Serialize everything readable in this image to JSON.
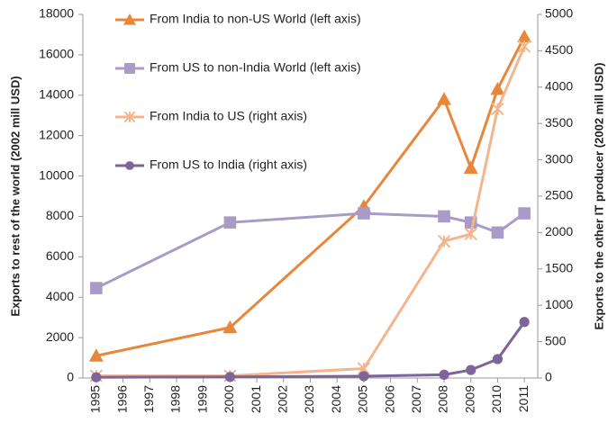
{
  "chart_data": {
    "type": "line",
    "y_label": "Exports to rest of the world (2002 mill USD)",
    "y2_label": "Exports to the other IT producer (2002 mill USD)",
    "x": [
      1995,
      2000,
      2005,
      2008,
      2009,
      2010,
      2011
    ],
    "xlim": [
      1994.5,
      2011.5
    ],
    "xticks": [
      1995,
      1996,
      1997,
      1998,
      1999,
      2000,
      2001,
      2002,
      2003,
      2004,
      2005,
      2006,
      2007,
      2008,
      2009,
      2010,
      2011
    ],
    "ylim": [
      0,
      18000
    ],
    "yticks": [
      0,
      2000,
      4000,
      6000,
      8000,
      10000,
      12000,
      14000,
      16000,
      18000
    ],
    "y2lim": [
      0,
      5000
    ],
    "y2ticks": [
      0,
      500,
      1000,
      1500,
      2000,
      2500,
      3000,
      3500,
      4000,
      4500,
      5000
    ],
    "legend": "top-left",
    "series": [
      {
        "name": "From India to non-US World (left axis)",
        "color": "#e8873a",
        "marker": "triangle",
        "values": [
          1100,
          2500,
          8500,
          13800,
          10400,
          14300,
          16900
        ]
      },
      {
        "name": "From US to non-India World (left axis)",
        "color": "#a99bc8",
        "marker": "square",
        "values": [
          4450,
          7700,
          8150,
          8000,
          7700,
          7200,
          8150
        ]
      },
      {
        "name": "From India to US (right axis)",
        "color": "#f4b48c",
        "marker": "asterisk",
        "axis": "y2",
        "values": [
          30,
          30,
          130,
          1880,
          1980,
          3700,
          4560
        ]
      },
      {
        "name": "From US to India (right axis)",
        "color": "#7d6499",
        "marker": "circle",
        "axis": "y2",
        "values": [
          10,
          15,
          25,
          45,
          110,
          260,
          770
        ]
      }
    ]
  }
}
